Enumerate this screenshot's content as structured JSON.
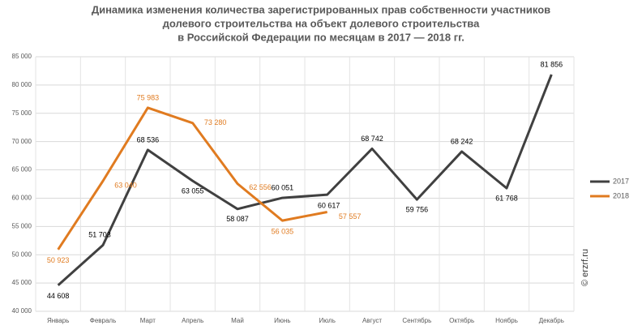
{
  "chart_data": {
    "type": "line",
    "title": [
      "Динамика изменения количества зарегистрированных прав собственности участников",
      "долевого строительства на объект долевого строительства",
      "в Российской Федерации по месяцам в 2017 — 2018 гг."
    ],
    "watermark": "© erzrf.ru",
    "categories": [
      "Январь",
      "Февраль",
      "Март",
      "Апрель",
      "Май",
      "Июнь",
      "Июль",
      "Август",
      "Сентябрь",
      "Октябрь",
      "Ноябрь",
      "Декабрь"
    ],
    "series": [
      {
        "name": "2017",
        "color": "#404040",
        "values": [
          44608,
          51703,
          68536,
          63055,
          58087,
          60051,
          60617,
          68742,
          59756,
          68242,
          61768,
          81856
        ],
        "value_labels": [
          "44 608",
          "51 703",
          "68 536",
          "63 055",
          "58 087",
          "60 051",
          "60 617",
          "68 742",
          "59 756",
          "68 242",
          "61 768",
          "81 856"
        ],
        "label_color": "#000000"
      },
      {
        "name": "2018",
        "color": "#e07b20",
        "values": [
          50923,
          63040,
          75983,
          73280,
          62556,
          56035,
          57557,
          null,
          null,
          null,
          null,
          null
        ],
        "value_labels": [
          "50 923",
          "63 040",
          "75 983",
          "73 280",
          "62 556",
          "56 035",
          "57 557",
          null,
          null,
          null,
          null,
          null
        ],
        "label_color": "#e07b20"
      }
    ],
    "ylim": [
      40000,
      85000
    ],
    "yticks": [
      {
        "value": 40000,
        "label": "40 000"
      },
      {
        "value": 45000,
        "label": "45 000"
      },
      {
        "value": 50000,
        "label": "50 000"
      },
      {
        "value": 55000,
        "label": "55 000"
      },
      {
        "value": 60000,
        "label": "60 000"
      },
      {
        "value": 65000,
        "label": "65 000"
      },
      {
        "value": 70000,
        "label": "70 000"
      },
      {
        "value": 75000,
        "label": "75 000"
      },
      {
        "value": 80000,
        "label": "80 000"
      },
      {
        "value": 85000,
        "label": "85 000"
      }
    ],
    "grid": true,
    "legend": "right"
  }
}
